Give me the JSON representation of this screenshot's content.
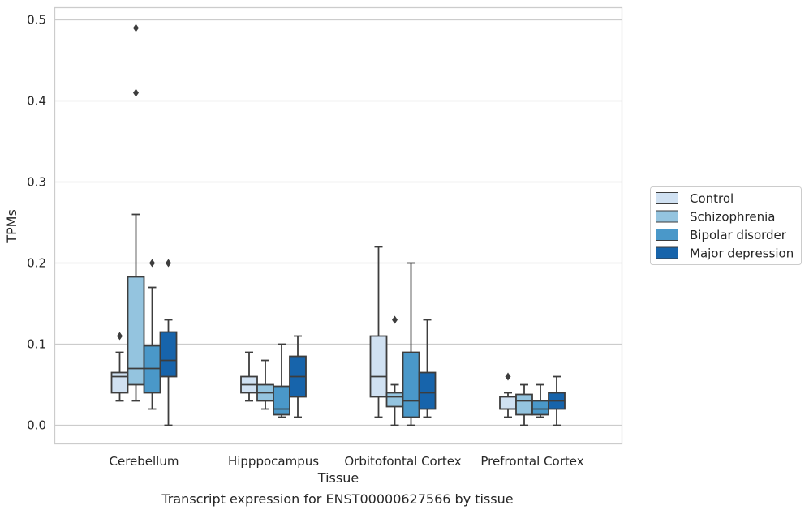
{
  "caption": "Transcript expression for ENST00000627566 by tissue",
  "chart_data": {
    "type": "box",
    "title": "",
    "xlabel": "Tissue",
    "ylabel": "TPMs",
    "ylim": [
      -0.023,
      0.515
    ],
    "yticks": [
      "0.0",
      "0.1",
      "0.2",
      "0.3",
      "0.4",
      "0.5"
    ],
    "grid": "horizontal",
    "legend_position": "right",
    "categories": [
      "Cerebellum",
      "Hipppocampus",
      "Orbitofontal Cortex",
      "Prefrontal Cortex"
    ],
    "series": [
      {
        "name": "Control",
        "color": "#d0e1f2",
        "boxes": [
          {
            "whislo": 0.03,
            "q1": 0.04,
            "med": 0.06,
            "q3": 0.065,
            "whishi": 0.09,
            "fliers": [
              0.11
            ]
          },
          {
            "whislo": 0.03,
            "q1": 0.04,
            "med": 0.05,
            "q3": 0.06,
            "whishi": 0.09,
            "fliers": []
          },
          {
            "whislo": 0.01,
            "q1": 0.035,
            "med": 0.06,
            "q3": 0.11,
            "whishi": 0.22,
            "fliers": []
          },
          {
            "whislo": 0.01,
            "q1": 0.02,
            "med": 0.02,
            "q3": 0.035,
            "whishi": 0.04,
            "fliers": [
              0.06
            ]
          }
        ]
      },
      {
        "name": "Schizophrenia",
        "color": "#94c4df",
        "boxes": [
          {
            "whislo": 0.03,
            "q1": 0.05,
            "med": 0.07,
            "q3": 0.183,
            "whishi": 0.26,
            "fliers": [
              0.41,
              0.49
            ]
          },
          {
            "whislo": 0.02,
            "q1": 0.03,
            "med": 0.04,
            "q3": 0.05,
            "whishi": 0.08,
            "fliers": []
          },
          {
            "whislo": 0.0,
            "q1": 0.023,
            "med": 0.035,
            "q3": 0.04,
            "whishi": 0.05,
            "fliers": [
              0.13
            ]
          },
          {
            "whislo": 0.0,
            "q1": 0.013,
            "med": 0.03,
            "q3": 0.038,
            "whishi": 0.05,
            "fliers": []
          }
        ]
      },
      {
        "name": "Bipolar disorder",
        "color": "#4a98c9",
        "boxes": [
          {
            "whislo": 0.02,
            "q1": 0.04,
            "med": 0.07,
            "q3": 0.098,
            "whishi": 0.17,
            "fliers": [
              0.2
            ]
          },
          {
            "whislo": 0.01,
            "q1": 0.013,
            "med": 0.02,
            "q3": 0.048,
            "whishi": 0.1,
            "fliers": []
          },
          {
            "whislo": 0.0,
            "q1": 0.01,
            "med": 0.03,
            "q3": 0.09,
            "whishi": 0.2,
            "fliers": []
          },
          {
            "whislo": 0.01,
            "q1": 0.013,
            "med": 0.02,
            "q3": 0.03,
            "whishi": 0.05,
            "fliers": []
          }
        ]
      },
      {
        "name": "Major depression",
        "color": "#1764ab",
        "boxes": [
          {
            "whislo": 0.0,
            "q1": 0.06,
            "med": 0.08,
            "q3": 0.115,
            "whishi": 0.13,
            "fliers": [
              0.2
            ]
          },
          {
            "whislo": 0.01,
            "q1": 0.035,
            "med": 0.06,
            "q3": 0.085,
            "whishi": 0.11,
            "fliers": []
          },
          {
            "whislo": 0.01,
            "q1": 0.02,
            "med": 0.04,
            "q3": 0.065,
            "whishi": 0.13,
            "fliers": []
          },
          {
            "whislo": 0.0,
            "q1": 0.02,
            "med": 0.03,
            "q3": 0.04,
            "whishi": 0.06,
            "fliers": []
          }
        ]
      }
    ]
  }
}
